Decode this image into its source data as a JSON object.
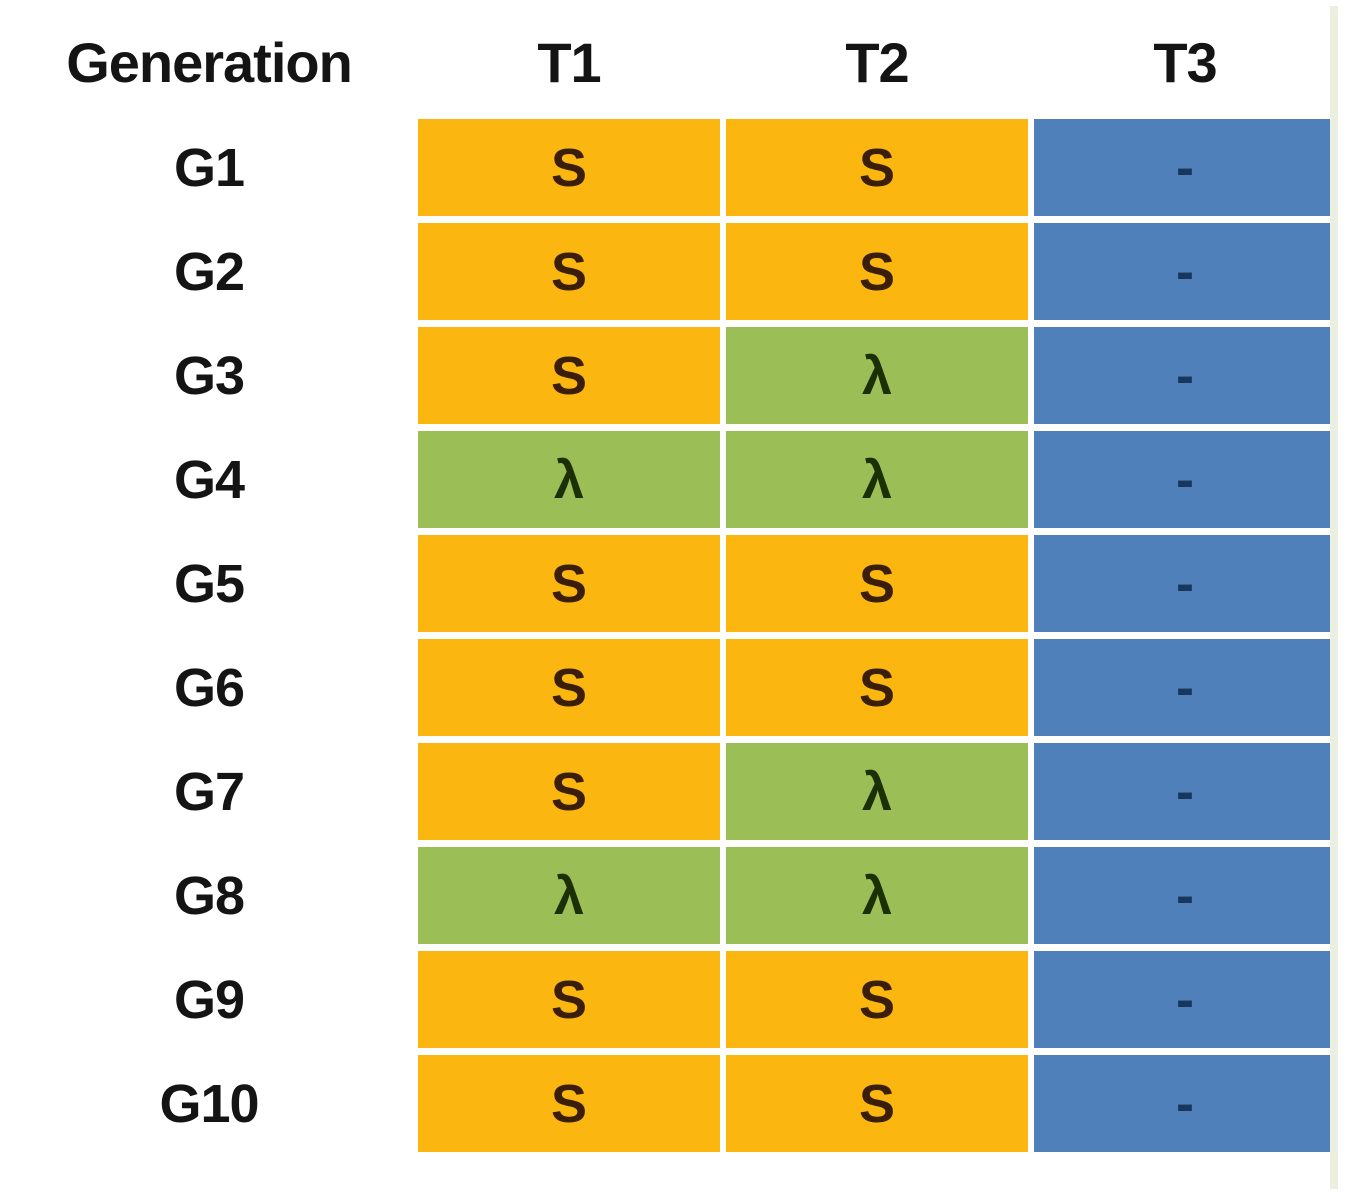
{
  "table": {
    "headers": [
      "Generation",
      "T1",
      "T2",
      "T3"
    ],
    "rows": [
      {
        "generation": "G1",
        "cells": [
          {
            "value": "S",
            "variant": "gold"
          },
          {
            "value": "S",
            "variant": "gold"
          },
          {
            "value": "-",
            "variant": "blue"
          }
        ]
      },
      {
        "generation": "G2",
        "cells": [
          {
            "value": "S",
            "variant": "gold"
          },
          {
            "value": "S",
            "variant": "gold"
          },
          {
            "value": "-",
            "variant": "blue"
          }
        ]
      },
      {
        "generation": "G3",
        "cells": [
          {
            "value": "S",
            "variant": "gold"
          },
          {
            "value": "λ",
            "variant": "green"
          },
          {
            "value": "-",
            "variant": "blue"
          }
        ]
      },
      {
        "generation": "G4",
        "cells": [
          {
            "value": "λ",
            "variant": "green"
          },
          {
            "value": "λ",
            "variant": "green"
          },
          {
            "value": "-",
            "variant": "blue"
          }
        ]
      },
      {
        "generation": "G5",
        "cells": [
          {
            "value": "S",
            "variant": "gold"
          },
          {
            "value": "S",
            "variant": "gold"
          },
          {
            "value": "-",
            "variant": "blue"
          }
        ]
      },
      {
        "generation": "G6",
        "cells": [
          {
            "value": "S",
            "variant": "gold"
          },
          {
            "value": "S",
            "variant": "gold"
          },
          {
            "value": "-",
            "variant": "blue"
          }
        ]
      },
      {
        "generation": "G7",
        "cells": [
          {
            "value": "S",
            "variant": "gold"
          },
          {
            "value": "λ",
            "variant": "green"
          },
          {
            "value": "-",
            "variant": "blue"
          }
        ]
      },
      {
        "generation": "G8",
        "cells": [
          {
            "value": "λ",
            "variant": "green"
          },
          {
            "value": "λ",
            "variant": "green"
          },
          {
            "value": "-",
            "variant": "blue"
          }
        ]
      },
      {
        "generation": "G9",
        "cells": [
          {
            "value": "S",
            "variant": "gold"
          },
          {
            "value": "S",
            "variant": "gold"
          },
          {
            "value": "-",
            "variant": "blue"
          }
        ]
      },
      {
        "generation": "G10",
        "cells": [
          {
            "value": "S",
            "variant": "gold"
          },
          {
            "value": "S",
            "variant": "gold"
          },
          {
            "value": "-",
            "variant": "blue"
          }
        ]
      }
    ]
  },
  "chart_data": {
    "type": "table",
    "columns": [
      "Generation",
      "T1",
      "T2",
      "T3"
    ],
    "rows": [
      [
        "G1",
        "S",
        "S",
        "-"
      ],
      [
        "G2",
        "S",
        "S",
        "-"
      ],
      [
        "G3",
        "S",
        "λ",
        "-"
      ],
      [
        "G4",
        "λ",
        "λ",
        "-"
      ],
      [
        "G5",
        "S",
        "S",
        "-"
      ],
      [
        "G6",
        "S",
        "S",
        "-"
      ],
      [
        "G7",
        "S",
        "λ",
        "-"
      ],
      [
        "G8",
        "λ",
        "λ",
        "-"
      ],
      [
        "G9",
        "S",
        "S",
        "-"
      ],
      [
        "G10",
        "S",
        "S",
        "-"
      ],
      [
        "legend-colors",
        "S=gold cell",
        "λ=green cell",
        "-=blue cell"
      ]
    ]
  },
  "colors": {
    "gold": "#FBB710",
    "green": "#9BBE56",
    "blue": "#4F80BA",
    "gold_text": "#3B1E08",
    "green_text": "#1B3006",
    "blue_text": "#17375E",
    "label_text": "#141414",
    "edge_strip": "#ECEEDF"
  }
}
